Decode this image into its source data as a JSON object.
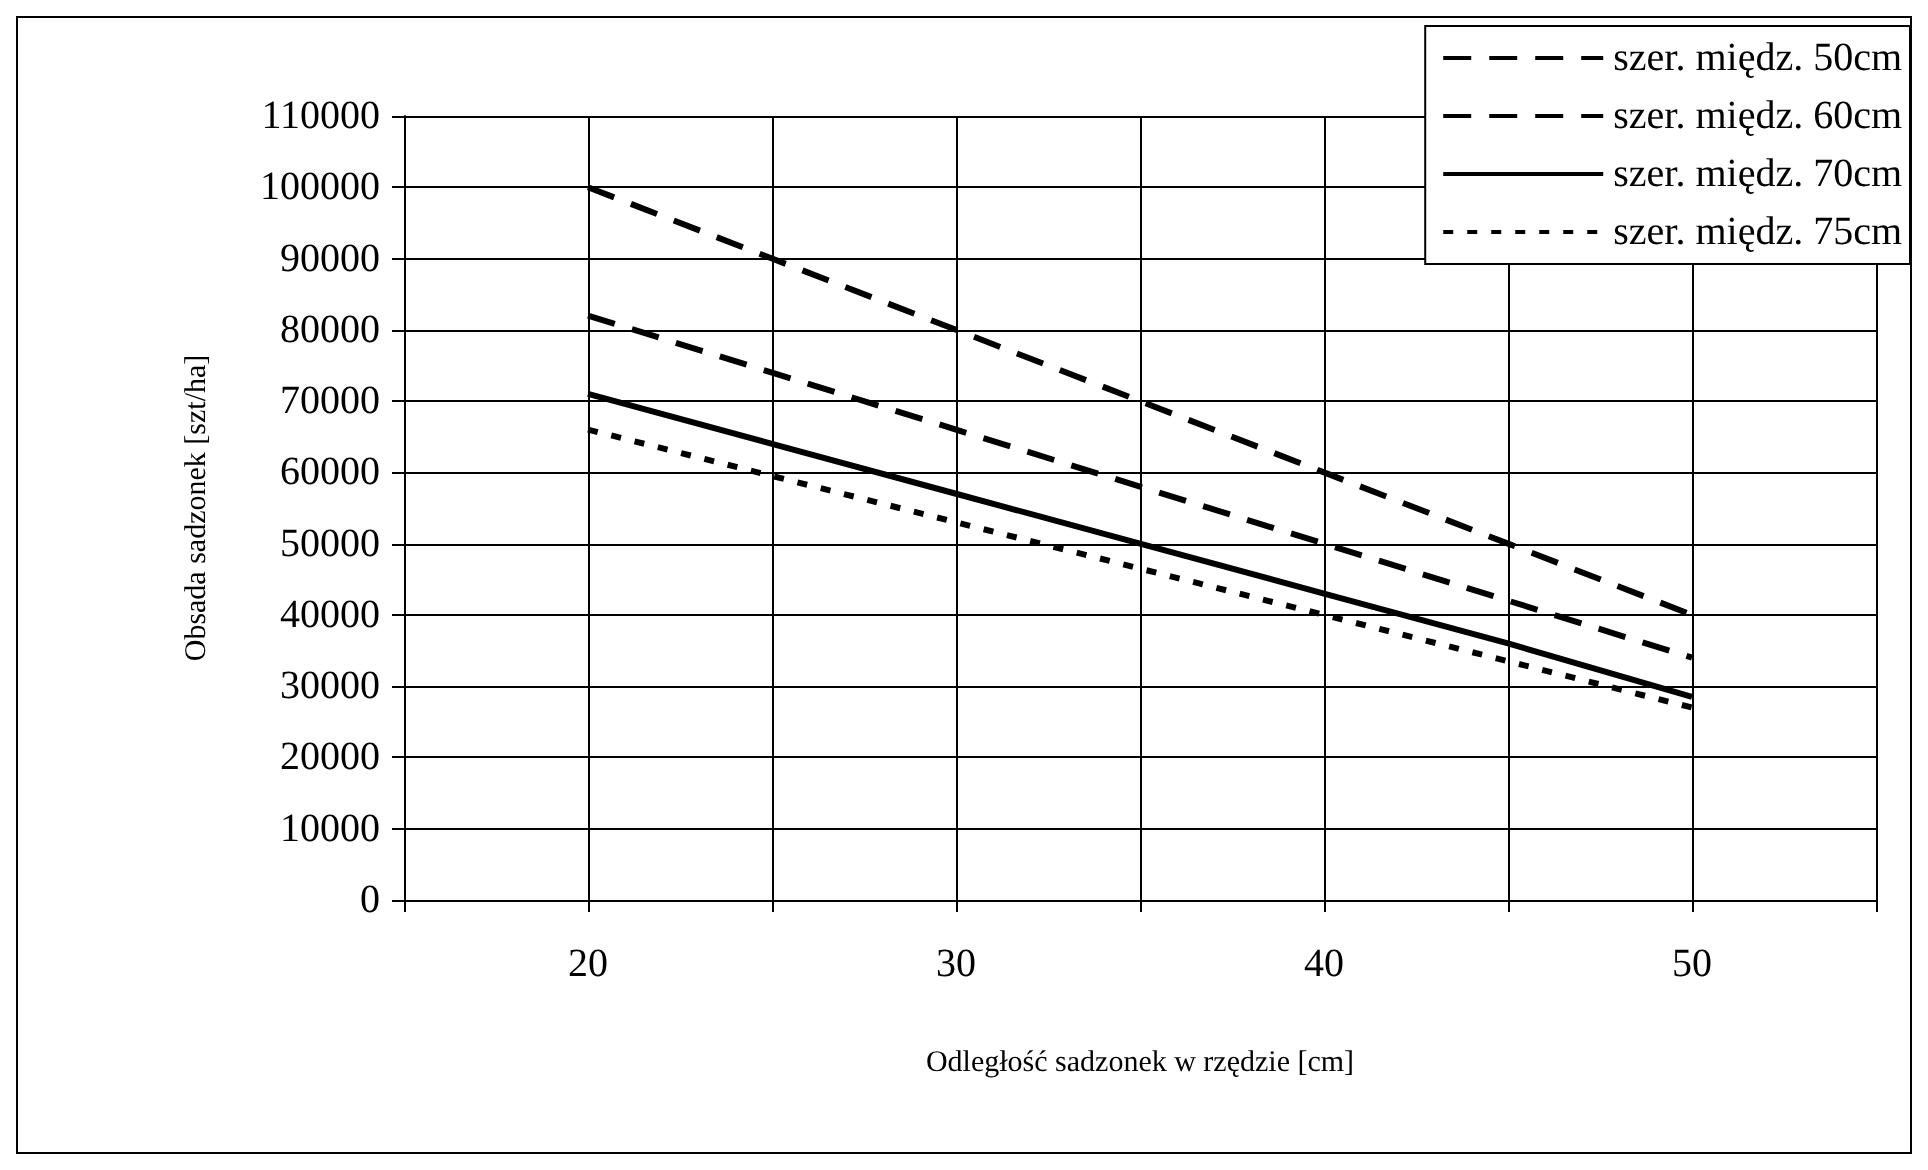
{
  "chart_data": {
    "type": "line",
    "xlabel": "Odległość sadzonek w rzędzie [cm]",
    "ylabel": "Obsada sadzonek [szt/ha]",
    "x": [
      20,
      25,
      30,
      35,
      40,
      45,
      50
    ],
    "series": [
      {
        "name": "szer. międz. 50cm",
        "color": "#000000",
        "line_style": "dashed",
        "values": [
          100000,
          90000,
          80000,
          70000,
          60000,
          50000,
          40000
        ]
      },
      {
        "name": "szer. międz. 60cm",
        "color": "#000000",
        "line_style": "dashed",
        "values": [
          82000,
          74000,
          66000,
          58000,
          50000,
          42000,
          34000
        ]
      },
      {
        "name": "szer. międz. 70cm",
        "color": "#000000",
        "line_style": "solid",
        "values": [
          71000,
          64000,
          57000,
          50000,
          43000,
          36000,
          28500
        ]
      },
      {
        "name": "szer. międz. 75cm",
        "color": "#000000",
        "line_style": "dotted",
        "values": [
          66000,
          59500,
          53000,
          46500,
          40000,
          33500,
          27000
        ]
      }
    ],
    "xlim": [
      15,
      55
    ],
    "xticks": [
      {
        "value": 15,
        "label": null
      },
      {
        "value": 20,
        "label": "20"
      },
      {
        "value": 25,
        "label": null
      },
      {
        "value": 30,
        "label": "30"
      },
      {
        "value": 35,
        "label": null
      },
      {
        "value": 40,
        "label": "40"
      },
      {
        "value": 45,
        "label": null
      },
      {
        "value": 50,
        "label": "50"
      },
      {
        "value": 55,
        "label": null
      }
    ],
    "ylim": [
      0,
      110000
    ],
    "yticks": [
      0,
      10000,
      20000,
      30000,
      40000,
      50000,
      60000,
      70000,
      80000,
      90000,
      100000,
      110000
    ],
    "grid": true,
    "legend": "top right",
    "marker": "none"
  }
}
